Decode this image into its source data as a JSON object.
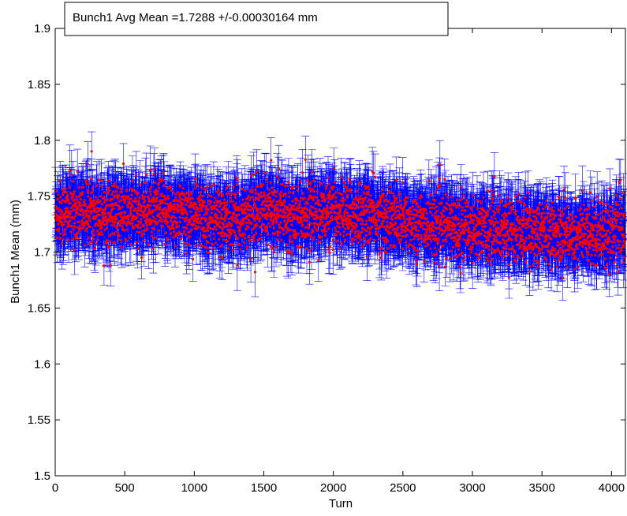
{
  "chart_data": {
    "type": "scatter",
    "title": "",
    "xlabel": "Turn",
    "ylabel": "Bunch1 Mean (mm)",
    "xlim": [
      0,
      4100
    ],
    "ylim": [
      1.5,
      1.9
    ],
    "xticks": [
      0,
      500,
      1000,
      1500,
      2000,
      2500,
      3000,
      3500,
      4000
    ],
    "xtick_labels": [
      "0",
      "500",
      "1000",
      "1500",
      "2000",
      "2500",
      "3000",
      "3500",
      "4000"
    ],
    "yticks": [
      1.5,
      1.55,
      1.6,
      1.65,
      1.7,
      1.75,
      1.8,
      1.85,
      1.9
    ],
    "ytick_labels": [
      "1.5",
      "1.55",
      "1.6",
      "1.65",
      "1.7",
      "1.75",
      "1.8",
      "1.85",
      "1.9"
    ],
    "grid": false,
    "legend_text": "Bunch1 Avg Mean =1.7288 +/-0.00030164 mm",
    "legend_position": "top-left",
    "n_points": 4096,
    "trend_x": [
      0,
      250,
      500,
      750,
      1000,
      1250,
      1500,
      1750,
      2000,
      2250,
      2500,
      2750,
      3000,
      3250,
      3500,
      3750,
      4096
    ],
    "trend_y": [
      1.735,
      1.737,
      1.733,
      1.737,
      1.733,
      1.728,
      1.737,
      1.735,
      1.735,
      1.733,
      1.727,
      1.725,
      1.722,
      1.72,
      1.718,
      1.716,
      1.72
    ],
    "point_spread_sd": 0.014,
    "error_bar_halfwidth": 0.02,
    "series": [
      {
        "role": "mean",
        "color": "#ff0000",
        "marker": "dot"
      },
      {
        "role": "error",
        "color": "#0000ff",
        "marker": "errorbar"
      }
    ]
  }
}
